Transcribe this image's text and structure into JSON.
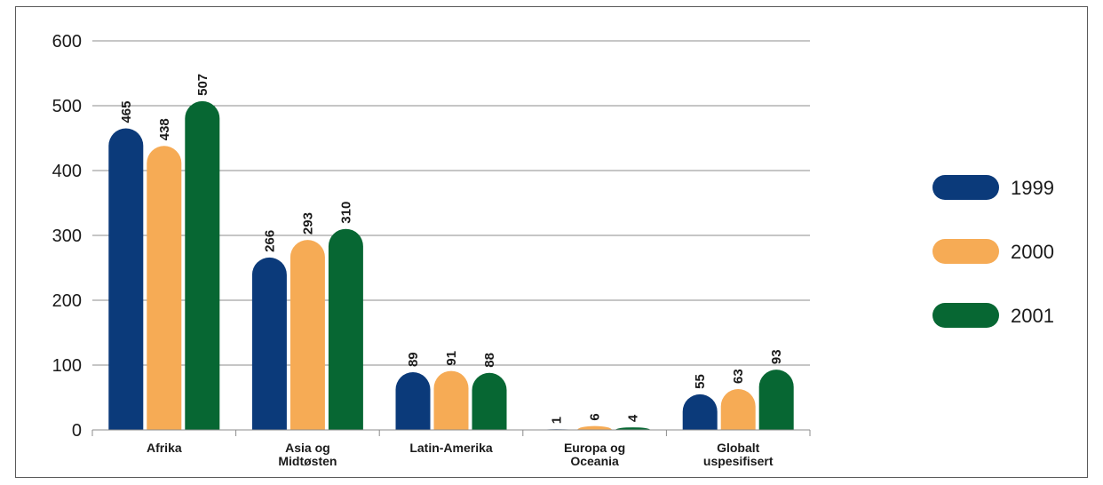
{
  "chart_data": {
    "type": "bar",
    "categories": [
      [
        "Afrika"
      ],
      [
        "Asia og",
        "Midtøsten"
      ],
      [
        "Latin-Amerika"
      ],
      [
        "Europa og",
        "Oceania"
      ],
      [
        "Globalt",
        "uspesifisert"
      ]
    ],
    "series": [
      {
        "name": "1999",
        "color": "#0b3a7a",
        "values": [
          465,
          266,
          89,
          1,
          55
        ]
      },
      {
        "name": "2000",
        "color": "#f6ab55",
        "values": [
          438,
          293,
          91,
          6,
          63
        ]
      },
      {
        "name": "2001",
        "color": "#076733",
        "values": [
          507,
          310,
          88,
          4,
          93
        ]
      }
    ],
    "ylim": [
      0,
      600
    ],
    "yticks": [
      0,
      100,
      200,
      300,
      400,
      500,
      600
    ],
    "grid": true,
    "legend_position": "right",
    "title": "",
    "xlabel": "",
    "ylabel": ""
  }
}
